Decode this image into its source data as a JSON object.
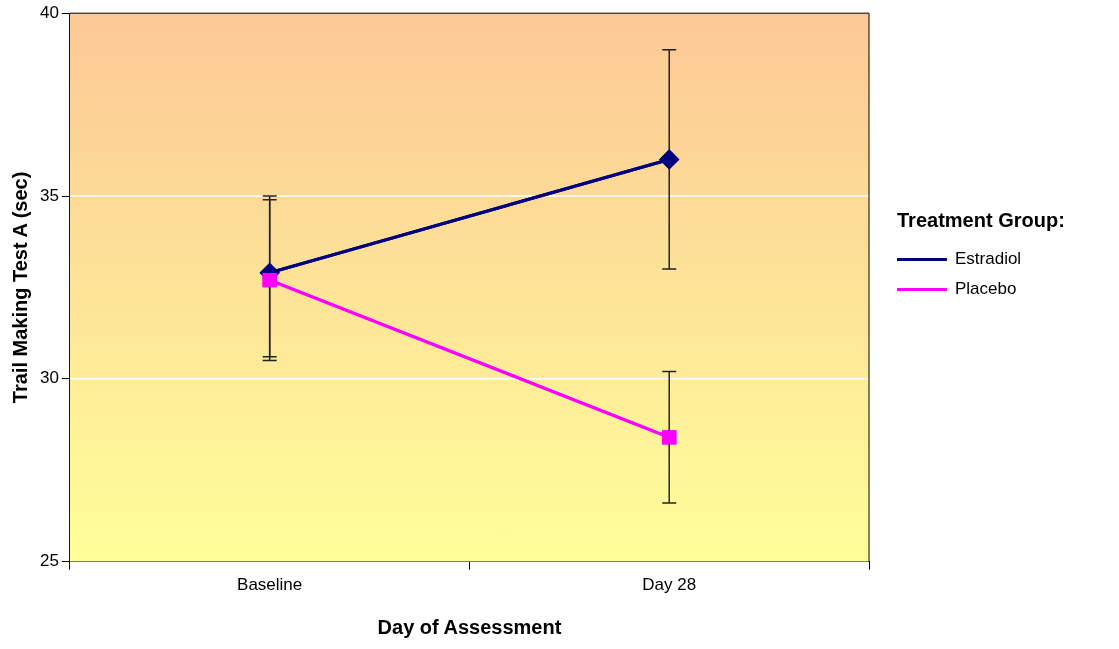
{
  "chart_data": {
    "type": "line",
    "xlabel": "Day of Assessment",
    "ylabel": "Trail Making Test A (sec)",
    "legend_title": "Treatment Group:",
    "categories": [
      "Baseline",
      "Day 28"
    ],
    "series": [
      {
        "name": "Estradiol",
        "color": "#000080",
        "values": [
          32.9,
          36.0
        ],
        "errors": [
          [
            30.6,
            35.0
          ],
          [
            33.0,
            39.0
          ]
        ],
        "marker": "diamond"
      },
      {
        "name": "Placebo",
        "color": "#ff00ff",
        "values": [
          32.7,
          28.4
        ],
        "errors": [
          [
            30.5,
            34.9
          ],
          [
            26.6,
            30.2
          ]
        ],
        "marker": "square"
      }
    ],
    "ylim": [
      25,
      40
    ],
    "yticks": [
      25,
      30,
      35,
      40
    ],
    "grid": "y",
    "legend": "right",
    "line_style": "solid"
  }
}
